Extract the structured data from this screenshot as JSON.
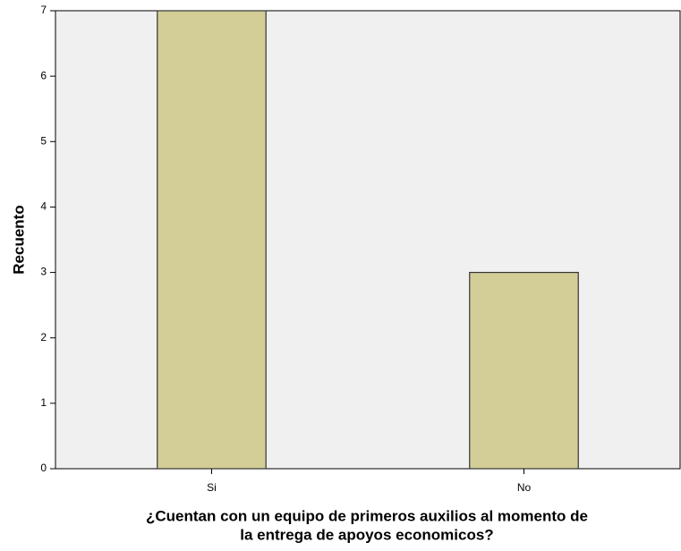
{
  "chart_data": {
    "type": "bar",
    "categories": [
      "Si",
      "No"
    ],
    "values": [
      7,
      3
    ],
    "color": "#d3ce97",
    "ylabel": "Recuento",
    "xlabel": [
      "¿Cuentan con un equipo de primeros auxilios al momento de",
      "la entrega de apoyos economicos?"
    ],
    "ylim": [
      0,
      7
    ],
    "yticks": [
      0,
      1,
      2,
      3,
      4,
      5,
      6,
      7
    ],
    "grid": false
  }
}
